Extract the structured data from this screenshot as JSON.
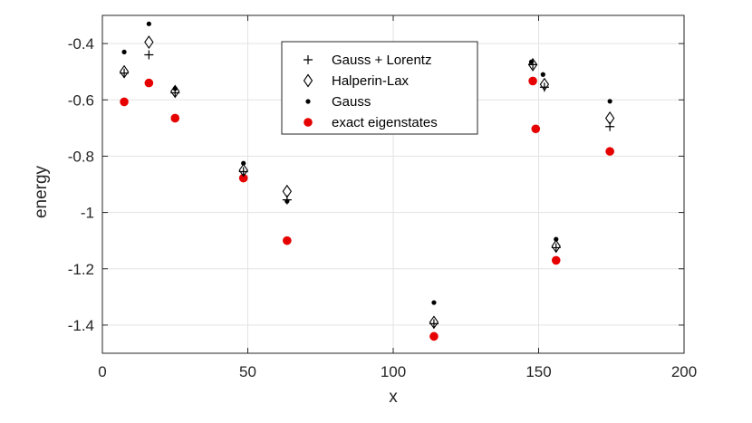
{
  "chart_data": {
    "type": "scatter",
    "xlabel": "x",
    "ylabel": "energy",
    "xlim": [
      0,
      200
    ],
    "ylim": [
      -1.5,
      -0.3
    ],
    "xticks": [
      0,
      50,
      100,
      150,
      200
    ],
    "xtick_labels": [
      "0",
      "50",
      "100",
      "150",
      "200"
    ],
    "yticks": [
      -1.4,
      -1.2,
      -1,
      -0.8,
      -0.6,
      -0.4
    ],
    "ytick_labels": [
      "-1.4",
      "-1.2",
      "-1",
      "-0.8",
      "-0.6",
      "-0.4"
    ],
    "grid": true,
    "legend_position": "top-center",
    "series": [
      {
        "name": "Gauss + Lorentz",
        "marker": "plus",
        "color": "#000000",
        "points": [
          [
            7.5,
            -0.505
          ],
          [
            16,
            -0.44
          ],
          [
            25,
            -0.575
          ],
          [
            48.5,
            -0.855
          ],
          [
            63.5,
            -0.955
          ],
          [
            114,
            -1.395
          ],
          [
            148,
            -0.475
          ],
          [
            152,
            -0.555
          ],
          [
            156,
            -1.125
          ],
          [
            174.5,
            -0.695
          ]
        ]
      },
      {
        "name": "Halperin-Lax",
        "marker": "diamond",
        "color": "#000000",
        "points": [
          [
            7.5,
            -0.5
          ],
          [
            16,
            -0.395
          ],
          [
            25,
            -0.57
          ],
          [
            48.5,
            -0.85
          ],
          [
            63.5,
            -0.925
          ],
          [
            114,
            -1.39
          ],
          [
            148,
            -0.475
          ],
          [
            152,
            -0.545
          ],
          [
            156,
            -1.12
          ],
          [
            174.5,
            -0.665
          ]
        ]
      },
      {
        "name": "Gauss",
        "marker": "dot",
        "color": "#000000",
        "points": [
          [
            7.5,
            -0.43
          ],
          [
            16,
            -0.33
          ],
          [
            25,
            -0.56
          ],
          [
            48.5,
            -0.825
          ],
          [
            63.5,
            -0.96
          ],
          [
            114,
            -1.32
          ],
          [
            147.5,
            -0.465
          ],
          [
            151.5,
            -0.51
          ],
          [
            156,
            -1.095
          ],
          [
            174.5,
            -0.605
          ]
        ]
      },
      {
        "name": "exact eigenstates",
        "marker": "circle",
        "color": "#e60000",
        "points": [
          [
            7.5,
            -0.607
          ],
          [
            16,
            -0.54
          ],
          [
            25,
            -0.665
          ],
          [
            48.5,
            -0.878
          ],
          [
            63.5,
            -1.1
          ],
          [
            114,
            -1.44
          ],
          [
            148,
            -0.533
          ],
          [
            149,
            -0.703
          ],
          [
            156,
            -1.17
          ],
          [
            174.5,
            -0.783
          ]
        ]
      }
    ]
  }
}
